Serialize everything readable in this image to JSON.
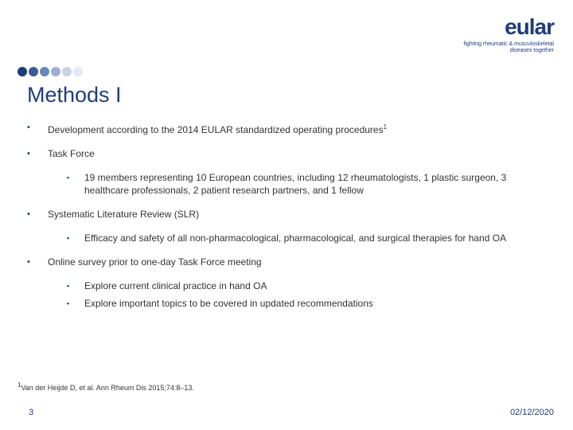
{
  "logo": {
    "text": "eular",
    "tagline1": "fighting rheumatic & musculoskeletal",
    "tagline2": "diseases together"
  },
  "dots": {
    "colors": [
      "#1f3d7a",
      "#3a5a9a",
      "#6b86b8",
      "#9eaed0",
      "#c9d2e4",
      "#e5e9f2"
    ]
  },
  "title": "Methods I",
  "bullets": [
    {
      "text": "Development according to the 2014 EULAR standardized operating procedures",
      "sup": "1",
      "sub": []
    },
    {
      "text": "Task Force",
      "sub": [
        "19 members representing 10 European countries, including 12 rheumatologists, 1 plastic surgeon, 3 healthcare professionals, 2 patient research partners, and 1 fellow"
      ]
    },
    {
      "text": "Systematic Literature Review (SLR)",
      "sub": [
        "Efficacy and safety of all non-pharmacological, pharmacological, and surgical therapies for hand OA"
      ]
    },
    {
      "text": "Online survey prior to one-day Task Force meeting",
      "sub": [
        "Explore current clinical practice in hand OA",
        "Explore important topics to be covered in updated recommendations"
      ]
    }
  ],
  "footnote": {
    "sup": "1",
    "text": "Van der Heijde D, et al. Ann Rheum Dis 2015;74:8–13."
  },
  "pageNumber": "3",
  "date": "02/12/2020",
  "colors": {
    "primary": "#1f3d7a",
    "text": "#333333"
  }
}
